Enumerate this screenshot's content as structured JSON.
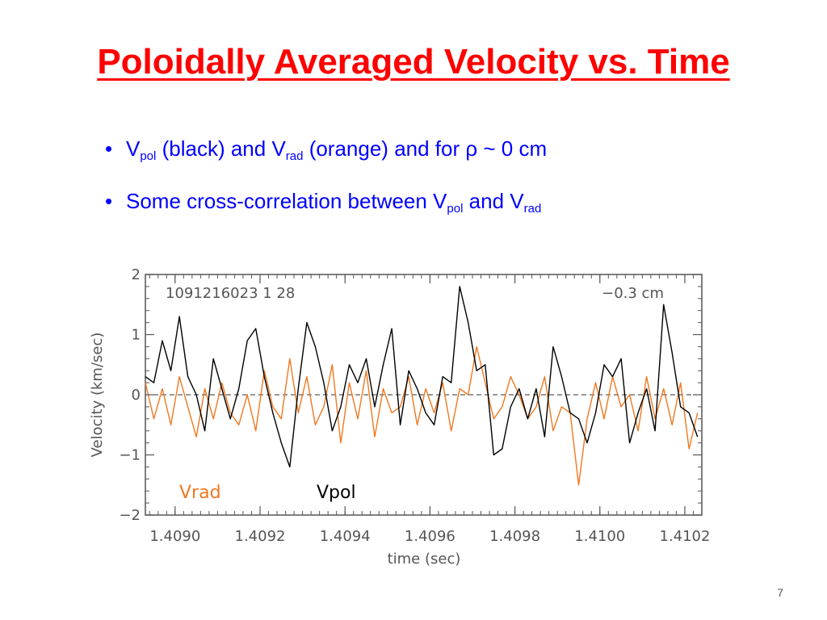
{
  "slide": {
    "title": "Poloidally Averaged Velocity vs. Time",
    "page_number": "7"
  },
  "bullets": [
    {
      "v1": "V",
      "sub1": "pol",
      "mid1": " (black) and V",
      "sub2": "rad",
      "mid2": " (orange) and for ",
      "greek": "ρ",
      "tail": " ~ 0 cm"
    },
    {
      "lead": "Some cross-correlation between V",
      "sub1": "pol",
      "mid": " and V",
      "sub2": "rad"
    }
  ],
  "colors": {
    "title": "#ff0000",
    "bullets": "#0000ff",
    "vpol": "#000000",
    "vrad": "#f07820",
    "axis": "#555555"
  },
  "chart_data": {
    "type": "line",
    "title": "",
    "xlabel": "time (sec)",
    "ylabel": "Velocity (km/sec)",
    "xlim": [
      1.40893,
      1.41024
    ],
    "ylim": [
      -2.0,
      2.0
    ],
    "x_ticks": [
      1.409,
      1.4092,
      1.4094,
      1.4096,
      1.4098,
      1.41,
      1.4102
    ],
    "x_tick_labels": [
      "1.4090",
      "1.4092",
      "1.4094",
      "1.4096",
      "1.4098",
      "1.4100",
      "1.4102"
    ],
    "y_ticks": [
      -2,
      -1,
      0,
      1,
      2
    ],
    "y_tick_labels": [
      "−2",
      "−1",
      "0",
      "1",
      "2"
    ],
    "zero_line": true,
    "annotations": {
      "shot": "1091216023   1   28",
      "radius": "−0.3 cm"
    },
    "legend": {
      "placement": "bottom-left",
      "entries": [
        "Vrad",
        "Vpol"
      ]
    },
    "series": [
      {
        "name": "Vpol",
        "color": "#000000",
        "x": [
          1.40893,
          1.40895,
          1.40897,
          1.40899,
          1.40901,
          1.40903,
          1.40905,
          1.40907,
          1.40909,
          1.40911,
          1.40913,
          1.40915,
          1.40917,
          1.40919,
          1.40921,
          1.40923,
          1.40925,
          1.40927,
          1.40929,
          1.40931,
          1.40933,
          1.40935,
          1.40937,
          1.40939,
          1.40941,
          1.40943,
          1.40945,
          1.40947,
          1.40949,
          1.40951,
          1.40953,
          1.40955,
          1.40957,
          1.40959,
          1.40961,
          1.40963,
          1.40965,
          1.40967,
          1.40969,
          1.40971,
          1.40973,
          1.40975,
          1.40977,
          1.40979,
          1.40981,
          1.40983,
          1.40985,
          1.40987,
          1.40989,
          1.40991,
          1.40993,
          1.40995,
          1.40997,
          1.40999,
          1.41001,
          1.41003,
          1.41005,
          1.41007,
          1.41009,
          1.41011,
          1.41013,
          1.41015,
          1.41017,
          1.41019,
          1.41021,
          1.41023
        ],
        "values": [
          0.3,
          0.2,
          0.9,
          0.4,
          1.3,
          0.3,
          0.0,
          -0.6,
          0.6,
          0.1,
          -0.4,
          0.1,
          0.9,
          1.1,
          0.3,
          -0.3,
          -0.8,
          -1.2,
          0.1,
          1.2,
          0.8,
          0.2,
          -0.6,
          -0.2,
          0.5,
          0.2,
          0.6,
          -0.2,
          0.5,
          1.1,
          -0.5,
          0.4,
          0.1,
          -0.3,
          -0.5,
          0.3,
          0.2,
          1.8,
          1.2,
          0.4,
          0.5,
          -1.0,
          -0.9,
          -0.2,
          0.1,
          -0.4,
          0.1,
          -0.7,
          0.8,
          0.3,
          -0.3,
          -0.4,
          -0.8,
          -0.3,
          0.5,
          0.3,
          0.6,
          -0.8,
          -0.3,
          0.1,
          -0.6,
          1.5,
          0.7,
          -0.2,
          -0.3,
          -0.7
        ]
      },
      {
        "name": "Vrad",
        "color": "#f07820",
        "x": [
          1.40893,
          1.40895,
          1.40897,
          1.40899,
          1.40901,
          1.40903,
          1.40905,
          1.40907,
          1.40909,
          1.40911,
          1.40913,
          1.40915,
          1.40917,
          1.40919,
          1.40921,
          1.40923,
          1.40925,
          1.40927,
          1.40929,
          1.40931,
          1.40933,
          1.40935,
          1.40937,
          1.40939,
          1.40941,
          1.40943,
          1.40945,
          1.40947,
          1.40949,
          1.40951,
          1.40953,
          1.40955,
          1.40957,
          1.40959,
          1.40961,
          1.40963,
          1.40965,
          1.40967,
          1.40969,
          1.40971,
          1.40973,
          1.40975,
          1.40977,
          1.40979,
          1.40981,
          1.40983,
          1.40985,
          1.40987,
          1.40989,
          1.40991,
          1.40993,
          1.40995,
          1.40997,
          1.40999,
          1.41001,
          1.41003,
          1.41005,
          1.41007,
          1.41009,
          1.41011,
          1.41013,
          1.41015,
          1.41017,
          1.41019,
          1.41021,
          1.41023
        ],
        "values": [
          0.2,
          -0.4,
          0.1,
          -0.5,
          0.3,
          -0.2,
          -0.7,
          0.1,
          -0.4,
          0.2,
          -0.3,
          -0.5,
          0.0,
          -0.6,
          0.4,
          -0.2,
          -0.4,
          0.6,
          -0.3,
          0.3,
          -0.5,
          -0.2,
          0.5,
          -0.8,
          0.2,
          -0.4,
          0.4,
          -0.7,
          0.1,
          -0.3,
          -0.2,
          0.3,
          -0.5,
          0.1,
          -0.3,
          0.2,
          -0.6,
          0.1,
          0.0,
          0.8,
          0.2,
          -0.4,
          -0.2,
          0.3,
          0.0,
          -0.4,
          -0.2,
          0.3,
          -0.6,
          -0.2,
          -0.3,
          -1.5,
          -0.4,
          0.2,
          -0.4,
          0.3,
          -0.2,
          0.0,
          -0.6,
          0.3,
          -0.4,
          0.1,
          -0.5,
          0.2,
          -0.9,
          -0.3
        ]
      }
    ]
  }
}
